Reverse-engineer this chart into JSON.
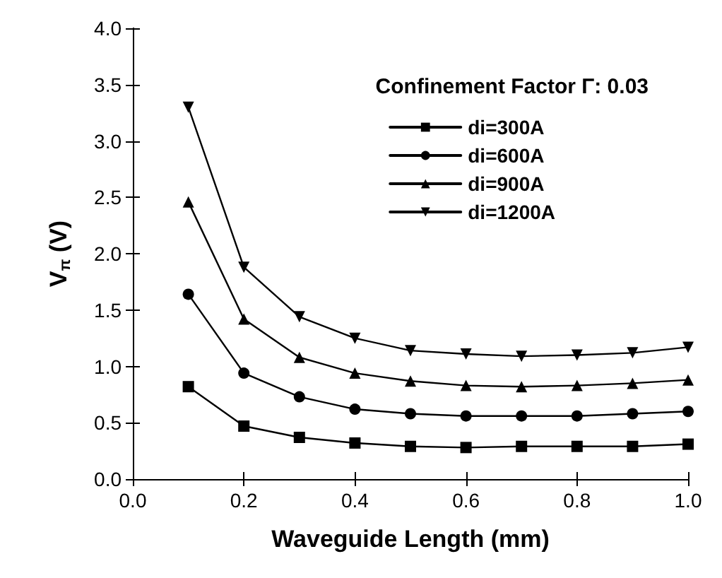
{
  "chart_data": {
    "type": "line",
    "xlabel": "Waveguide Length (mm)",
    "ylabel": "V$_{π}$ (V)",
    "legend_title": "Confinement Factor Γ: 0.03",
    "legend": "top right",
    "grid": false,
    "line_style": "solid",
    "x": [
      0.1,
      0.2,
      0.3,
      0.4,
      0.5,
      0.6,
      0.7,
      0.8,
      0.9,
      1.0
    ],
    "xlim": [
      0,
      1
    ],
    "xticks": [
      {
        "value": 0,
        "label": "0.0"
      },
      0.2,
      0.4,
      0.6,
      0.8,
      {
        "value": 1,
        "label": "1.0"
      }
    ],
    "ylim": [
      0,
      4
    ],
    "yticks": [
      {
        "value": 0,
        "label": "0.0"
      },
      0.5,
      {
        "value": 1,
        "label": "1.0"
      },
      1.5,
      {
        "value": 2,
        "label": "2.0"
      },
      2.5,
      {
        "value": 3,
        "label": "3.0"
      },
      3.5,
      {
        "value": 4,
        "label": "4.0"
      }
    ],
    "series": [
      {
        "name": "di=300A",
        "color": "#000000",
        "marker": "square",
        "values": [
          0.82,
          0.47,
          0.37,
          0.32,
          0.29,
          0.28,
          0.29,
          0.29,
          0.29,
          0.31
        ]
      },
      {
        "name": "di=600A",
        "color": "#000000",
        "marker": "circle",
        "values": [
          1.64,
          0.94,
          0.73,
          0.62,
          0.58,
          0.56,
          0.56,
          0.56,
          0.58,
          0.6
        ]
      },
      {
        "name": "di=900A",
        "color": "#000000",
        "marker": "triangle",
        "values": [
          2.46,
          1.42,
          1.08,
          0.94,
          0.87,
          0.83,
          0.82,
          0.83,
          0.85,
          0.88
        ]
      },
      {
        "name": "di=1200A",
        "color": "#000000",
        "marker": "triangle-down",
        "values": [
          3.3,
          1.88,
          1.44,
          1.25,
          1.14,
          1.11,
          1.09,
          1.1,
          1.12,
          1.17
        ]
      }
    ]
  }
}
